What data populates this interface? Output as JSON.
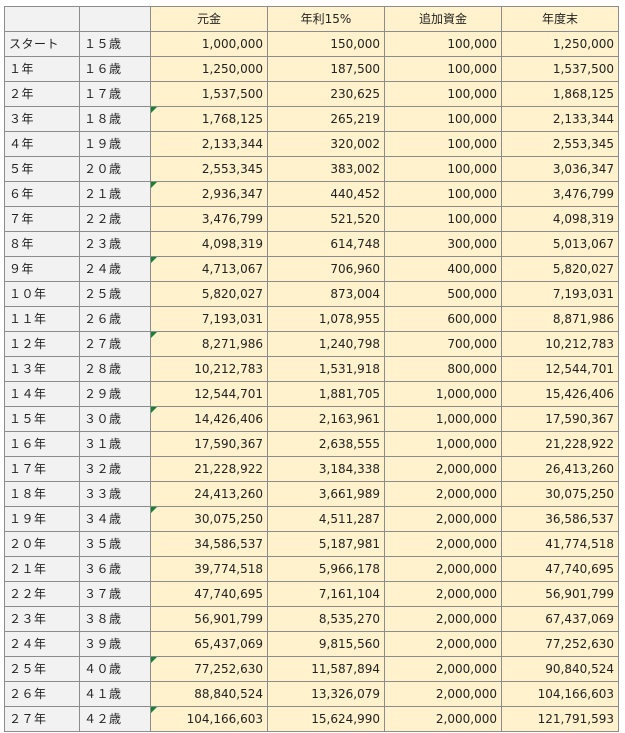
{
  "columns": [
    "元金",
    "年利15%",
    "追加資金",
    "年度末"
  ],
  "rows": [
    {
      "year": "スタート",
      "age": "１５歳",
      "principal": "1,000,000",
      "interest": "150,000",
      "additional": "100,000",
      "year_end": "1,250,000",
      "flag": false
    },
    {
      "year": "１年",
      "age": "１６歳",
      "principal": "1,250,000",
      "interest": "187,500",
      "additional": "100,000",
      "year_end": "1,537,500",
      "flag": false
    },
    {
      "year": "２年",
      "age": "１７歳",
      "principal": "1,537,500",
      "interest": "230,625",
      "additional": "100,000",
      "year_end": "1,868,125",
      "flag": false
    },
    {
      "year": "３年",
      "age": "１８歳",
      "principal": "1,768,125",
      "interest": "265,219",
      "additional": "100,000",
      "year_end": "2,133,344",
      "flag": true
    },
    {
      "year": "４年",
      "age": "１９歳",
      "principal": "2,133,344",
      "interest": "320,002",
      "additional": "100,000",
      "year_end": "2,553,345",
      "flag": false
    },
    {
      "year": "５年",
      "age": "２０歳",
      "principal": "2,553,345",
      "interest": "383,002",
      "additional": "100,000",
      "year_end": "3,036,347",
      "flag": false
    },
    {
      "year": "６年",
      "age": "２１歳",
      "principal": "2,936,347",
      "interest": "440,452",
      "additional": "100,000",
      "year_end": "3,476,799",
      "flag": true
    },
    {
      "year": "７年",
      "age": "２２歳",
      "principal": "3,476,799",
      "interest": "521,520",
      "additional": "100,000",
      "year_end": "4,098,319",
      "flag": false
    },
    {
      "year": "８年",
      "age": "２３歳",
      "principal": "4,098,319",
      "interest": "614,748",
      "additional": "300,000",
      "year_end": "5,013,067",
      "flag": false
    },
    {
      "year": "９年",
      "age": "２４歳",
      "principal": "4,713,067",
      "interest": "706,960",
      "additional": "400,000",
      "year_end": "5,820,027",
      "flag": true
    },
    {
      "year": "１０年",
      "age": "２５歳",
      "principal": "5,820,027",
      "interest": "873,004",
      "additional": "500,000",
      "year_end": "7,193,031",
      "flag": false
    },
    {
      "year": "１１年",
      "age": "２６歳",
      "principal": "7,193,031",
      "interest": "1,078,955",
      "additional": "600,000",
      "year_end": "8,871,986",
      "flag": false
    },
    {
      "year": "１２年",
      "age": "２７歳",
      "principal": "8,271,986",
      "interest": "1,240,798",
      "additional": "700,000",
      "year_end": "10,212,783",
      "flag": true
    },
    {
      "year": "１３年",
      "age": "２８歳",
      "principal": "10,212,783",
      "interest": "1,531,918",
      "additional": "800,000",
      "year_end": "12,544,701",
      "flag": false
    },
    {
      "year": "１４年",
      "age": "２９歳",
      "principal": "12,544,701",
      "interest": "1,881,705",
      "additional": "1,000,000",
      "year_end": "15,426,406",
      "flag": false
    },
    {
      "year": "１５年",
      "age": "３０歳",
      "principal": "14,426,406",
      "interest": "2,163,961",
      "additional": "1,000,000",
      "year_end": "17,590,367",
      "flag": true
    },
    {
      "year": "１６年",
      "age": "３１歳",
      "principal": "17,590,367",
      "interest": "2,638,555",
      "additional": "1,000,000",
      "year_end": "21,228,922",
      "flag": false
    },
    {
      "year": "１７年",
      "age": "３２歳",
      "principal": "21,228,922",
      "interest": "3,184,338",
      "additional": "2,000,000",
      "year_end": "26,413,260",
      "flag": false
    },
    {
      "year": "１８年",
      "age": "３３歳",
      "principal": "24,413,260",
      "interest": "3,661,989",
      "additional": "2,000,000",
      "year_end": "30,075,250",
      "flag": false
    },
    {
      "year": "１９年",
      "age": "３４歳",
      "principal": "30,075,250",
      "interest": "4,511,287",
      "additional": "2,000,000",
      "year_end": "36,586,537",
      "flag": true
    },
    {
      "year": "２０年",
      "age": "３５歳",
      "principal": "34,586,537",
      "interest": "5,187,981",
      "additional": "2,000,000",
      "year_end": "41,774,518",
      "flag": false
    },
    {
      "year": "２１年",
      "age": "３６歳",
      "principal": "39,774,518",
      "interest": "5,966,178",
      "additional": "2,000,000",
      "year_end": "47,740,695",
      "flag": false
    },
    {
      "year": "２２年",
      "age": "３７歳",
      "principal": "47,740,695",
      "interest": "7,161,104",
      "additional": "2,000,000",
      "year_end": "56,901,799",
      "flag": false
    },
    {
      "year": "２３年",
      "age": "３８歳",
      "principal": "56,901,799",
      "interest": "8,535,270",
      "additional": "2,000,000",
      "year_end": "67,437,069",
      "flag": false
    },
    {
      "year": "２４年",
      "age": "３９歳",
      "principal": "65,437,069",
      "interest": "9,815,560",
      "additional": "2,000,000",
      "year_end": "77,252,630",
      "flag": false
    },
    {
      "year": "２５年",
      "age": "４０歳",
      "principal": "77,252,630",
      "interest": "11,587,894",
      "additional": "2,000,000",
      "year_end": "90,840,524",
      "flag": true
    },
    {
      "year": "２６年",
      "age": "４１歳",
      "principal": "88,840,524",
      "interest": "13,326,079",
      "additional": "2,000,000",
      "year_end": "104,166,603",
      "flag": false
    },
    {
      "year": "２７年",
      "age": "４２歳",
      "principal": "104,166,603",
      "interest": "15,624,990",
      "additional": "2,000,000",
      "year_end": "121,791,593",
      "flag": true
    }
  ]
}
